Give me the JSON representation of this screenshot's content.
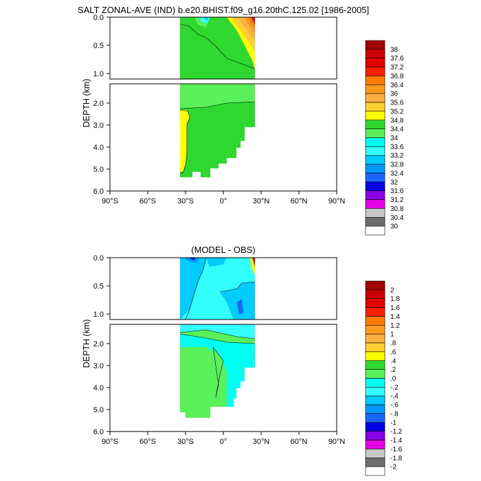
{
  "chart_data": [
    {
      "type": "heatmap",
      "title": "SALT ZONAL-AVE (IND) b.e20.BHIST.f09_g16.20thC.125.02 [1986-2005]",
      "ylabel": "DEPTH (km)",
      "x_ticks": [
        "90°S",
        "60°S",
        "30°S",
        "0°",
        "30°N",
        "60°N",
        "90°N"
      ],
      "xlim": [
        -90,
        90
      ],
      "upper_depth_ticks": [
        "0.0",
        "0.5",
        "1.0"
      ],
      "lower_depth_ticks": [
        "2.0",
        "3.0",
        "4.0",
        "5.0",
        "6.0"
      ],
      "upper_ylim": [
        0,
        1.1
      ],
      "lower_ylim": [
        1.1,
        6.0
      ],
      "colorbar": {
        "labels": [
          "38",
          "37.6",
          "37.2",
          "36.8",
          "36.4",
          "36",
          "35.6",
          "35.2",
          "34.8",
          "34.4",
          "34",
          "33.6",
          "33.2",
          "32.8",
          "32.4",
          "32",
          "31.6",
          "31.2",
          "30.8",
          "30.4",
          "30"
        ],
        "colors": [
          "#a50000",
          "#cc0000",
          "#e60000",
          "#ff2000",
          "#ff7a00",
          "#ff9a1f",
          "#ffb040",
          "#ffd030",
          "#ffff00",
          "#2fd82f",
          "#5af05a",
          "#00fff0",
          "#33ffff",
          "#00ccff",
          "#0099ff",
          "#1a66ff",
          "#0000e6",
          "#8a00e6",
          "#e600e6",
          "#c8c8c8",
          "#6e6e6e",
          "#ffffff"
        ]
      }
    },
    {
      "type": "heatmap",
      "title": "(MODEL - OBS)",
      "ylabel": "DEPTH (km)",
      "x_ticks": [
        "90°S",
        "60°S",
        "30°S",
        "0°",
        "30°N",
        "60°N",
        "90°N"
      ],
      "xlim": [
        -90,
        90
      ],
      "upper_depth_ticks": [
        "0.0",
        "0.5",
        "1.0"
      ],
      "lower_depth_ticks": [
        "2.0",
        "3.0",
        "4.0",
        "5.0",
        "6.0"
      ],
      "upper_ylim": [
        0,
        1.1
      ],
      "lower_ylim": [
        1.1,
        6.0
      ],
      "colorbar": {
        "labels": [
          "2",
          "1.8",
          "1.6",
          "1.4",
          "1.2",
          "1",
          ".8",
          ".6",
          ".4",
          ".2",
          ".0",
          "-.2",
          "-.4",
          "-.6",
          "-.8",
          "-1",
          "-1.2",
          "-1.4",
          "-1.6",
          "-1.8",
          "-2"
        ],
        "colors": [
          "#a50000",
          "#cc0000",
          "#e60000",
          "#ff2000",
          "#ff7a00",
          "#ff9a1f",
          "#ffb040",
          "#ffd030",
          "#ffff00",
          "#2fd82f",
          "#5af05a",
          "#00fff0",
          "#33ffff",
          "#00ccff",
          "#0099ff",
          "#1a66ff",
          "#0000e6",
          "#8a00e6",
          "#e600e6",
          "#c8c8c8",
          "#6e6e6e",
          "#ffffff"
        ]
      }
    }
  ]
}
